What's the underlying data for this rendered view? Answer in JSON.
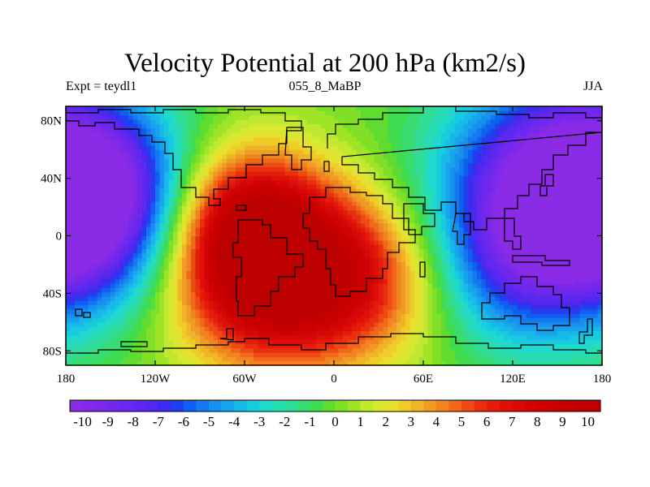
{
  "title": "Velocity Potential at 200 hPa (km2/s)",
  "subtitle_left": "Expt = teydl1",
  "subtitle_center": "055_8_MaBP",
  "subtitle_right": "JJA",
  "lat_ticks": [
    {
      "label": "80N",
      "lat": 80
    },
    {
      "label": "40N",
      "lat": 40
    },
    {
      "label": "0",
      "lat": 0
    },
    {
      "label": "40S",
      "lat": -40
    },
    {
      "label": "80S",
      "lat": -80
    }
  ],
  "lon_ticks": [
    {
      "label": "180",
      "lon": -180
    },
    {
      "label": "120W",
      "lon": -120
    },
    {
      "label": "60W",
      "lon": -60
    },
    {
      "label": "0",
      "lon": 0
    },
    {
      "label": "60E",
      "lon": 60
    },
    {
      "label": "120E",
      "lon": 120
    },
    {
      "label": "180",
      "lon": 180
    }
  ],
  "lat_range": [
    -90,
    90
  ],
  "lon_range": [
    -180,
    180
  ],
  "colorbar": {
    "min": -10.5,
    "max": 10.5,
    "step": 0.5,
    "labels": [
      "-10",
      "-9",
      "-8",
      "-7",
      "-6",
      "-5",
      "-4",
      "-3",
      "-2",
      "-1",
      "0",
      "1",
      "2",
      "3",
      "4",
      "5",
      "6",
      "7",
      "8",
      "9",
      "10"
    ],
    "colors": [
      "#8a2be6",
      "#8329e8",
      "#7a28ea",
      "#7128ec",
      "#6828ee",
      "#5f28f0",
      "#5028ee",
      "#3c2cf0",
      "#2040f0",
      "#1060f0",
      "#1478f0",
      "#1890f0",
      "#18a4ec",
      "#18b8e8",
      "#18cce0",
      "#20d8cc",
      "#28dcb4",
      "#30dc96",
      "#38dc70",
      "#40dc50",
      "#60dc30",
      "#80e028",
      "#a0e428",
      "#c0e830",
      "#d8e830",
      "#e8e030",
      "#f0cc28",
      "#f0b428",
      "#f09c24",
      "#f08420",
      "#f06818",
      "#ec4c14",
      "#e83010",
      "#e41c0c",
      "#e01008",
      "#d80808",
      "#d00404",
      "#cc0000",
      "#c80000",
      "#c40000",
      "#c00000",
      "#bc0000"
    ]
  },
  "map_data": {
    "field_centers": [
      {
        "lon": -45,
        "lat": -25,
        "value": 10.5,
        "radius": 45
      },
      {
        "lon": -60,
        "lat": 15,
        "value": 5,
        "radius": 35
      },
      {
        "lon": 20,
        "lat": -30,
        "value": 5,
        "radius": 40
      },
      {
        "lon": 150,
        "lat": 30,
        "value": -10,
        "radius": 55
      },
      {
        "lon": -165,
        "lat": 25,
        "value": -9,
        "radius": 45
      },
      {
        "lon": 120,
        "lat": -25,
        "value": -3,
        "radius": 40
      }
    ]
  }
}
